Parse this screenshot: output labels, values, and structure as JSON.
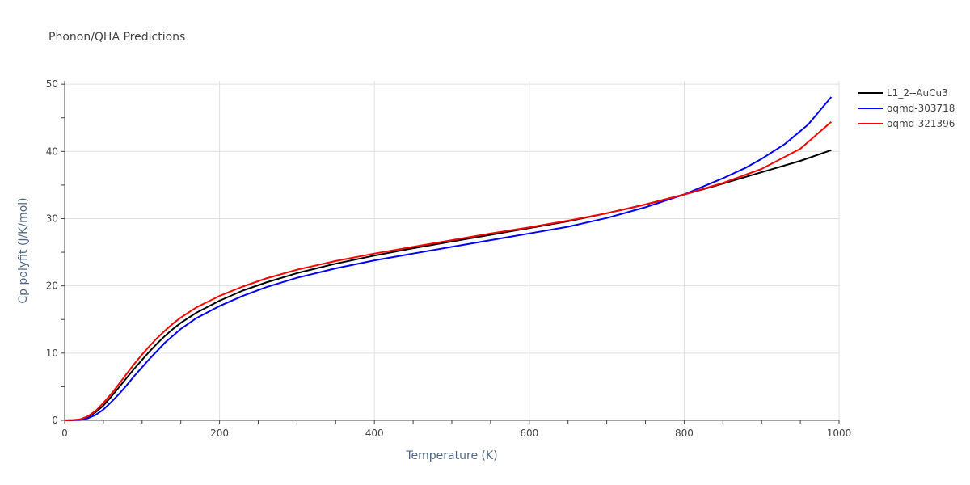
{
  "chart_data": {
    "type": "line",
    "title": "Phonon/QHA Predictions",
    "xlabel": "Temperature (K)",
    "ylabel": "Cp polyfit (J/K/mol)",
    "xlim": [
      0,
      1000
    ],
    "ylim": [
      0,
      50.5
    ],
    "xticks": [
      0,
      200,
      400,
      600,
      800,
      1000
    ],
    "yticks": [
      0,
      10,
      20,
      30,
      40,
      50
    ],
    "grid": true,
    "legend_position": "top-right",
    "series": [
      {
        "name": "L1_2--AuCu3",
        "color": "#000000",
        "points": [
          [
            0,
            0
          ],
          [
            10,
            0.02
          ],
          [
            20,
            0.1
          ],
          [
            30,
            0.5
          ],
          [
            40,
            1.2
          ],
          [
            50,
            2.2
          ],
          [
            60,
            3.5
          ],
          [
            70,
            4.9
          ],
          [
            80,
            6.3
          ],
          [
            90,
            7.7
          ],
          [
            100,
            9.0
          ],
          [
            110,
            10.3
          ],
          [
            120,
            11.5
          ],
          [
            130,
            12.6
          ],
          [
            140,
            13.6
          ],
          [
            150,
            14.5
          ],
          [
            170,
            16.0
          ],
          [
            200,
            17.8
          ],
          [
            230,
            19.3
          ],
          [
            260,
            20.5
          ],
          [
            300,
            21.9
          ],
          [
            350,
            23.3
          ],
          [
            400,
            24.5
          ],
          [
            450,
            25.6
          ],
          [
            500,
            26.6
          ],
          [
            550,
            27.6
          ],
          [
            600,
            28.6
          ],
          [
            650,
            29.6
          ],
          [
            700,
            30.8
          ],
          [
            750,
            32.1
          ],
          [
            800,
            33.6
          ],
          [
            850,
            35.2
          ],
          [
            900,
            36.9
          ],
          [
            950,
            38.6
          ],
          [
            990,
            40.2
          ]
        ]
      },
      {
        "name": "oqmd-303718",
        "color": "#0000ff",
        "points": [
          [
            0,
            0
          ],
          [
            10,
            0.01
          ],
          [
            20,
            0.05
          ],
          [
            30,
            0.3
          ],
          [
            40,
            0.8
          ],
          [
            50,
            1.6
          ],
          [
            60,
            2.7
          ],
          [
            70,
            3.9
          ],
          [
            80,
            5.2
          ],
          [
            90,
            6.6
          ],
          [
            100,
            7.9
          ],
          [
            110,
            9.2
          ],
          [
            120,
            10.4
          ],
          [
            130,
            11.6
          ],
          [
            140,
            12.6
          ],
          [
            150,
            13.6
          ],
          [
            170,
            15.2
          ],
          [
            200,
            17.0
          ],
          [
            230,
            18.5
          ],
          [
            260,
            19.8
          ],
          [
            300,
            21.2
          ],
          [
            350,
            22.6
          ],
          [
            400,
            23.8
          ],
          [
            450,
            24.8
          ],
          [
            500,
            25.8
          ],
          [
            550,
            26.8
          ],
          [
            600,
            27.8
          ],
          [
            650,
            28.8
          ],
          [
            700,
            30.1
          ],
          [
            750,
            31.7
          ],
          [
            800,
            33.6
          ],
          [
            850,
            36.0
          ],
          [
            880,
            37.6
          ],
          [
            900,
            38.9
          ],
          [
            930,
            41.1
          ],
          [
            960,
            44.0
          ],
          [
            990,
            48.1
          ]
        ]
      },
      {
        "name": "oqmd-321396",
        "color": "#ff0000",
        "points": [
          [
            0,
            0
          ],
          [
            10,
            0.02
          ],
          [
            20,
            0.15
          ],
          [
            30,
            0.6
          ],
          [
            40,
            1.4
          ],
          [
            50,
            2.6
          ],
          [
            60,
            3.9
          ],
          [
            70,
            5.4
          ],
          [
            80,
            6.9
          ],
          [
            90,
            8.4
          ],
          [
            100,
            9.8
          ],
          [
            110,
            11.1
          ],
          [
            120,
            12.3
          ],
          [
            130,
            13.4
          ],
          [
            140,
            14.4
          ],
          [
            150,
            15.3
          ],
          [
            170,
            16.8
          ],
          [
            200,
            18.5
          ],
          [
            230,
            19.9
          ],
          [
            260,
            21.1
          ],
          [
            300,
            22.4
          ],
          [
            350,
            23.7
          ],
          [
            400,
            24.8
          ],
          [
            450,
            25.8
          ],
          [
            500,
            26.8
          ],
          [
            550,
            27.8
          ],
          [
            600,
            28.7
          ],
          [
            650,
            29.7
          ],
          [
            700,
            30.8
          ],
          [
            750,
            32.1
          ],
          [
            800,
            33.6
          ],
          [
            850,
            35.3
          ],
          [
            900,
            37.4
          ],
          [
            950,
            40.4
          ],
          [
            990,
            44.4
          ]
        ]
      }
    ]
  }
}
